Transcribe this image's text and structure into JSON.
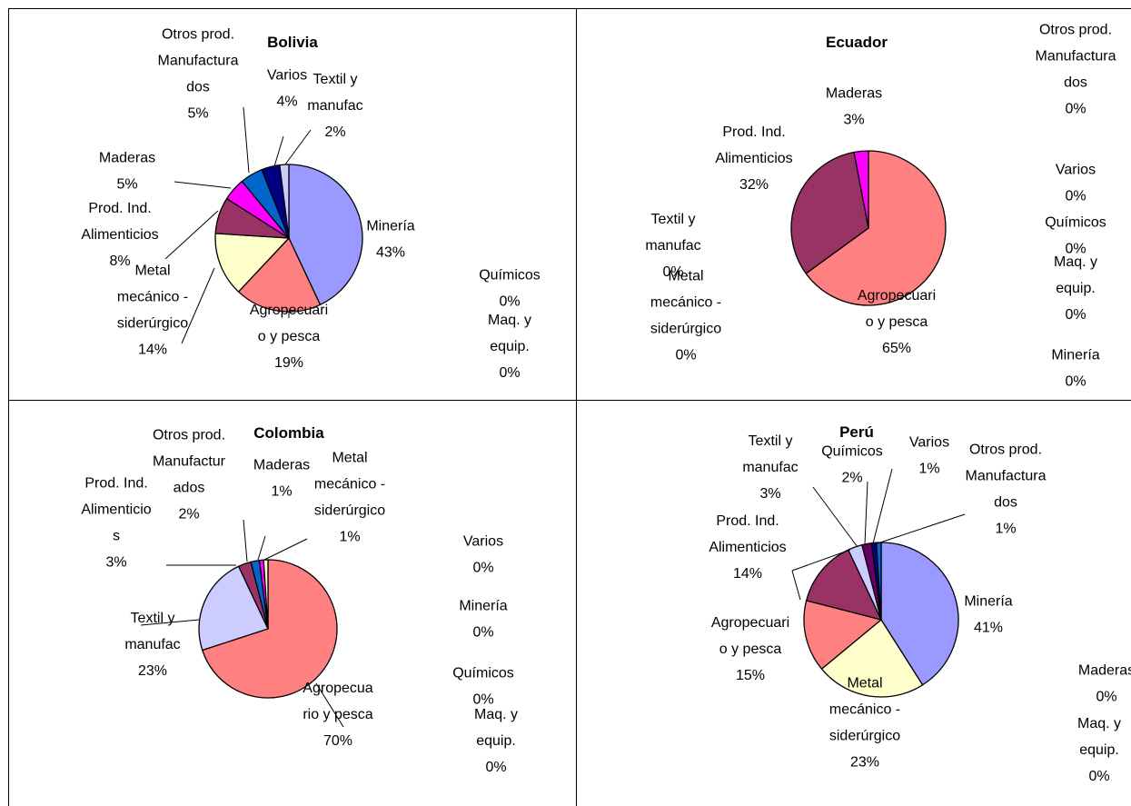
{
  "chart_data": [
    {
      "type": "pie",
      "title": "Bolivia",
      "slices": [
        {
          "name": "Minería",
          "value": 43,
          "lines": [
            "Minería",
            "43%"
          ],
          "color": "#9999FF"
        },
        {
          "name": "Agropecuario y pesca",
          "value": 19,
          "lines": [
            "Agropecuari",
            "o y pesca",
            "19%"
          ],
          "color": "#FF8080"
        },
        {
          "name": "Metal mecánico - siderúrgico",
          "value": 14,
          "lines": [
            "Metal",
            "mecánico -",
            "siderúrgico",
            "14%"
          ],
          "color": "#FFFFCC"
        },
        {
          "name": "Prod. Ind. Alimenticios",
          "value": 8,
          "lines": [
            "Prod. Ind.",
            "Alimenticios",
            "8%"
          ],
          "color": "#993366"
        },
        {
          "name": "Maderas",
          "value": 5,
          "lines": [
            "Maderas",
            "5%"
          ],
          "color": "#FF00FF"
        },
        {
          "name": "Otros prod. Manufacturados",
          "value": 5,
          "lines": [
            "Otros prod.",
            "Manufactura",
            "dos",
            "5%"
          ],
          "color": "#0066CC"
        },
        {
          "name": "Varios",
          "value": 4,
          "lines": [
            "Varios",
            "4%"
          ],
          "color": "#000080"
        },
        {
          "name": "Textil y manufac",
          "value": 2,
          "lines": [
            "Textil y",
            "manufac",
            "2%"
          ],
          "color": "#CCCCFF"
        },
        {
          "name": "Químicos",
          "value": 0,
          "lines": [
            "Químicos",
            "0%"
          ],
          "color": "#660066"
        },
        {
          "name": "Maq. y equip.",
          "value": 0,
          "lines": [
            "Maq. y",
            "equip.",
            "0%"
          ],
          "color": "#000000"
        }
      ]
    },
    {
      "type": "pie",
      "title": "Ecuador",
      "slices": [
        {
          "name": "Agropecuario y pesca",
          "value": 65,
          "lines": [
            "Agropecuari",
            "o y pesca",
            "65%"
          ],
          "color": "#FF8080"
        },
        {
          "name": "Prod. Ind. Alimenticios",
          "value": 32,
          "lines": [
            "Prod. Ind.",
            "Alimenticios",
            "32%"
          ],
          "color": "#993366"
        },
        {
          "name": "Maderas",
          "value": 3,
          "lines": [
            "Maderas",
            "3%"
          ],
          "color": "#FF00FF"
        },
        {
          "name": "Otros prod. Manufacturados",
          "value": 0,
          "lines": [
            "Otros prod.",
            "Manufactura",
            "dos",
            "0%"
          ],
          "color": "#0066CC"
        },
        {
          "name": "Varios",
          "value": 0,
          "lines": [
            "Varios",
            "0%"
          ],
          "color": "#000080"
        },
        {
          "name": "Químicos",
          "value": 0,
          "lines": [
            "Químicos",
            "0%"
          ],
          "color": "#660066"
        },
        {
          "name": "Maq. y equip.",
          "value": 0,
          "lines": [
            "Maq. y",
            "equip.",
            "0%"
          ],
          "color": "#000000"
        },
        {
          "name": "Minería",
          "value": 0,
          "lines": [
            "Minería",
            "0%"
          ],
          "color": "#9999FF"
        },
        {
          "name": "Textil y manufac",
          "value": 0,
          "lines": [
            "Textil y",
            "manufac",
            "0%"
          ],
          "color": "#CCCCFF"
        },
        {
          "name": "Metal mecánico - siderúrgico",
          "value": 0,
          "lines": [
            "Metal",
            "mecánico -",
            "siderúrgico",
            "0%"
          ],
          "color": "#FFFFCC"
        }
      ]
    },
    {
      "type": "pie",
      "title": "Colombia",
      "slices": [
        {
          "name": "Agropecuario y pesca",
          "value": 70,
          "lines": [
            "Agropecua",
            "rio y pesca",
            "70%"
          ],
          "color": "#FF8080"
        },
        {
          "name": "Textil y manufac",
          "value": 23,
          "lines": [
            "Textil y",
            "manufac",
            "23%"
          ],
          "color": "#CCCCFF"
        },
        {
          "name": "Prod. Ind. Alimenticios",
          "value": 3,
          "lines": [
            "Prod. Ind.",
            "Alimenticio",
            "s",
            "3%"
          ],
          "color": "#993366"
        },
        {
          "name": "Otros prod. Manufacturados",
          "value": 2,
          "lines": [
            "Otros prod.",
            "Manufactur",
            "ados",
            "2%"
          ],
          "color": "#0066CC"
        },
        {
          "name": "Maderas",
          "value": 1,
          "lines": [
            "Maderas",
            "1%"
          ],
          "color": "#FF00FF"
        },
        {
          "name": "Metal mecánico - siderúrgico",
          "value": 1,
          "lines": [
            "Metal",
            "mecánico -",
            "siderúrgico",
            "1%"
          ],
          "color": "#FFFFCC"
        },
        {
          "name": "Varios",
          "value": 0,
          "lines": [
            "Varios",
            "0%"
          ],
          "color": "#000080"
        },
        {
          "name": "Minería",
          "value": 0,
          "lines": [
            "Minería",
            "0%"
          ],
          "color": "#9999FF"
        },
        {
          "name": "Químicos",
          "value": 0,
          "lines": [
            "Químicos",
            "0%"
          ],
          "color": "#660066"
        },
        {
          "name": "Maq. y equip.",
          "value": 0,
          "lines": [
            "Maq. y",
            "equip.",
            "0%"
          ],
          "color": "#000000"
        }
      ]
    },
    {
      "type": "pie",
      "title": "Perú",
      "slices": [
        {
          "name": "Minería",
          "value": 41,
          "lines": [
            "Minería",
            "41%"
          ],
          "color": "#9999FF"
        },
        {
          "name": "Metal mecánico - siderúrgico",
          "value": 23,
          "lines": [
            "Metal",
            "mecánico -",
            "siderúrgico",
            "23%"
          ],
          "color": "#FFFFCC"
        },
        {
          "name": "Agropecuario y pesca",
          "value": 15,
          "lines": [
            "Agropecuari",
            "o y pesca",
            "15%"
          ],
          "color": "#FF8080"
        },
        {
          "name": "Prod. Ind. Alimenticios",
          "value": 14,
          "lines": [
            "Prod. Ind.",
            "Alimenticios",
            "14%"
          ],
          "color": "#993366"
        },
        {
          "name": "Textil y manufac",
          "value": 3,
          "lines": [
            "Textil y",
            "manufac",
            "3%"
          ],
          "color": "#CCCCFF"
        },
        {
          "name": "Químicos",
          "value": 2,
          "lines": [
            "Químicos",
            "2%"
          ],
          "color": "#660066"
        },
        {
          "name": "Varios",
          "value": 1,
          "lines": [
            "Varios",
            "1%"
          ],
          "color": "#000080"
        },
        {
          "name": "Otros prod. Manufacturados",
          "value": 1,
          "lines": [
            "Otros prod.",
            "Manufactura",
            "dos",
            "1%"
          ],
          "color": "#0066CC"
        },
        {
          "name": "Maderas",
          "value": 0,
          "lines": [
            "Maderas",
            "0%"
          ],
          "color": "#FF00FF"
        },
        {
          "name": "Maq. y equip.",
          "value": 0,
          "lines": [
            "Maq. y",
            "equip.",
            "0%"
          ],
          "color": "#000000"
        }
      ]
    }
  ]
}
